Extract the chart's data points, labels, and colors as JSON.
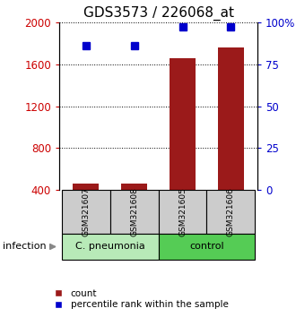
{
  "title": "GDS3573 / 226068_at",
  "samples": [
    "GSM321607",
    "GSM321608",
    "GSM321605",
    "GSM321606"
  ],
  "counts": [
    460,
    460,
    1660,
    1760
  ],
  "percentile_ranks": [
    86,
    86,
    97,
    97
  ],
  "group_info": [
    {
      "start": 0,
      "end": 1,
      "label": "C. pneumonia",
      "color": "#b8eab8"
    },
    {
      "start": 2,
      "end": 3,
      "label": "control",
      "color": "#55cc55"
    }
  ],
  "ylim_left": [
    400,
    2000
  ],
  "ylim_right": [
    0,
    100
  ],
  "yticks_left": [
    400,
    800,
    1200,
    1600,
    2000
  ],
  "yticks_right": [
    0,
    25,
    50,
    75,
    100
  ],
  "bar_color": "#9b1a1a",
  "dot_color": "#0000cc",
  "sample_box_color": "#cccccc",
  "label_infection": "infection",
  "legend_count": "count",
  "legend_percentile": "percentile rank within the sample",
  "title_fontsize": 11,
  "axis_color_left": "#cc0000",
  "axis_color_right": "#0000cc"
}
